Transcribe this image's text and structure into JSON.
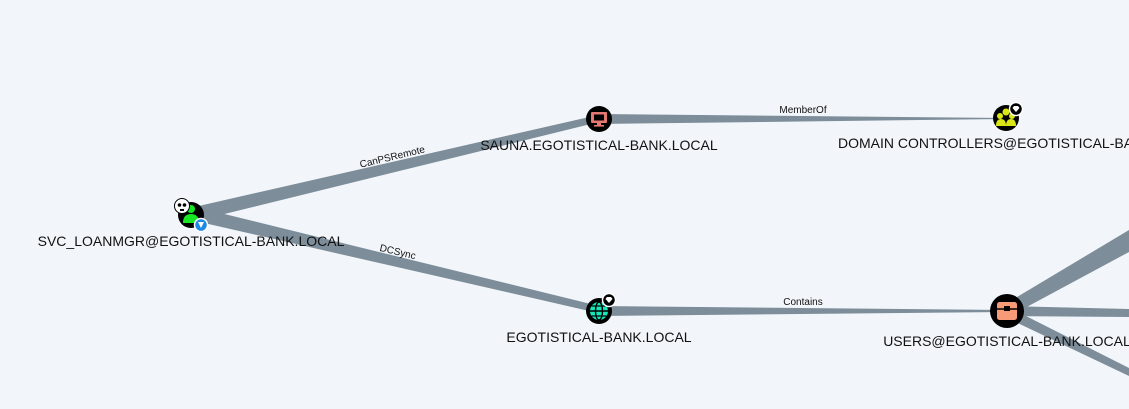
{
  "nodes": {
    "svc_loanmgr": {
      "label": "SVC_LOANMGR@EGOTISTICAL-BANK.LOCAL",
      "type": "user",
      "owned": true
    },
    "sauna": {
      "label": "SAUNA.EGOTISTICAL-BANK.LOCAL",
      "type": "computer"
    },
    "domain_controllers": {
      "label": "DOMAIN CONTROLLERS@EGOTISTICAL-BANK.LOCAL",
      "type": "group",
      "high_value": true
    },
    "domain": {
      "label": "EGOTISTICAL-BANK.LOCAL",
      "type": "domain",
      "high_value": true
    },
    "users_container": {
      "label": "USERS@EGOTISTICAL-BANK.LOCAL",
      "type": "container"
    }
  },
  "edges": {
    "canpsremote": {
      "label": "CanPSRemote",
      "from": "svc_loanmgr",
      "to": "sauna"
    },
    "dcsync": {
      "label": "DCSync",
      "from": "svc_loanmgr",
      "to": "domain"
    },
    "memberof": {
      "label": "MemberOf",
      "from": "sauna",
      "to": "domain_controllers"
    },
    "contains": {
      "label": "Contains",
      "from": "domain",
      "to": "users_container"
    }
  },
  "colors": {
    "background": "#f2f6fa",
    "edge": "#7d8d99",
    "node_outline": "#000000",
    "user": "#17e625",
    "computer": "#e67873",
    "group": "#dbe617",
    "domain": "#17e6b9",
    "container": "#f79a78"
  },
  "icons": {
    "user": "user-icon",
    "computer": "desktop-icon",
    "group": "users-icon",
    "domain": "globe-icon",
    "container": "box-icon",
    "owned": "skull-icon",
    "high_value": "gem-icon",
    "shield": "shield-icon"
  }
}
